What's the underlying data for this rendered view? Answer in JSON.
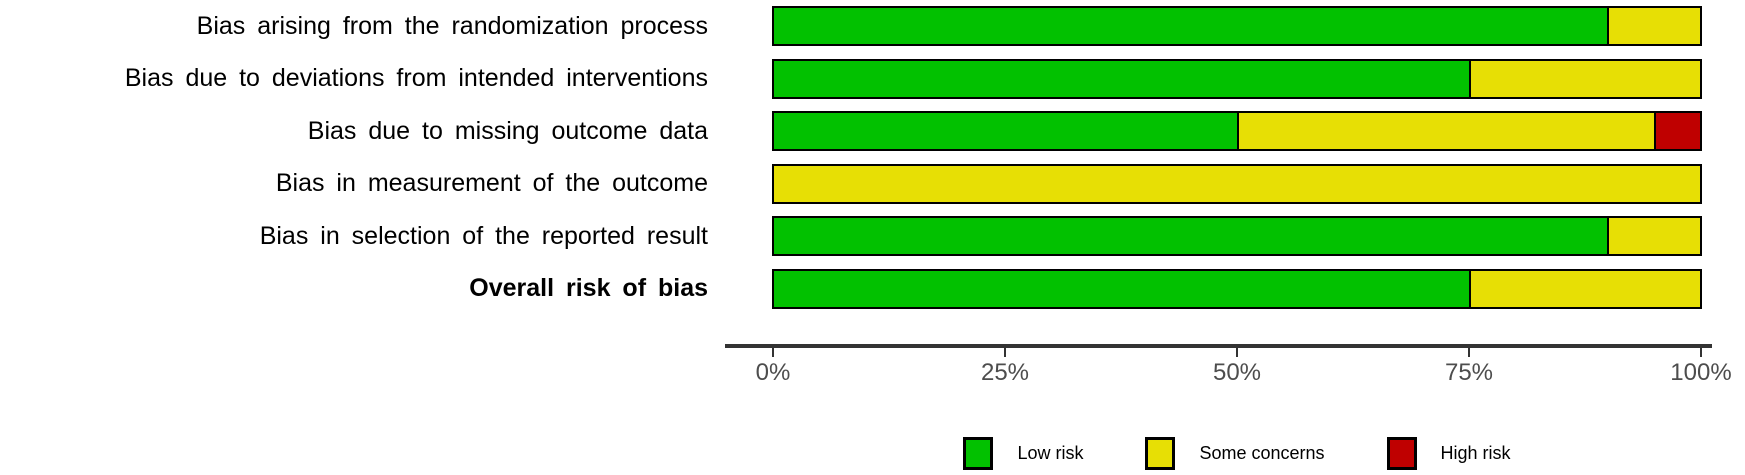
{
  "chart_data": {
    "type": "bar",
    "orientation": "horizontal",
    "stacked": true,
    "unit": "percent",
    "title": "",
    "xlabel": "",
    "ylabel": "",
    "xlim": [
      0,
      100
    ],
    "x_ticks": [
      "0%",
      "25%",
      "50%",
      "75%",
      "100%"
    ],
    "grid": false,
    "legend_position": "bottom",
    "categories": [
      "Bias arising from the randomization process",
      "Bias due to deviations from intended interventions",
      "Bias due to missing outcome data",
      "Bias in measurement of the outcome",
      "Bias in selection of the reported result",
      "Overall risk of bias"
    ],
    "bold_categories": [
      "Overall risk of bias"
    ],
    "series": [
      {
        "name": "Low risk",
        "color": "#02C100",
        "values": [
          90,
          75,
          50,
          0,
          90,
          75
        ]
      },
      {
        "name": "Some concerns",
        "color": "#E7DF05",
        "values": [
          10,
          25,
          45,
          100,
          10,
          25
        ]
      },
      {
        "name": "High risk",
        "color": "#BF0000",
        "values": [
          0,
          0,
          5,
          0,
          0,
          0
        ]
      }
    ],
    "colors": {
      "axis_line": "#333333",
      "tick_label": "#4d4d4d",
      "bar_border": "#000000"
    }
  }
}
